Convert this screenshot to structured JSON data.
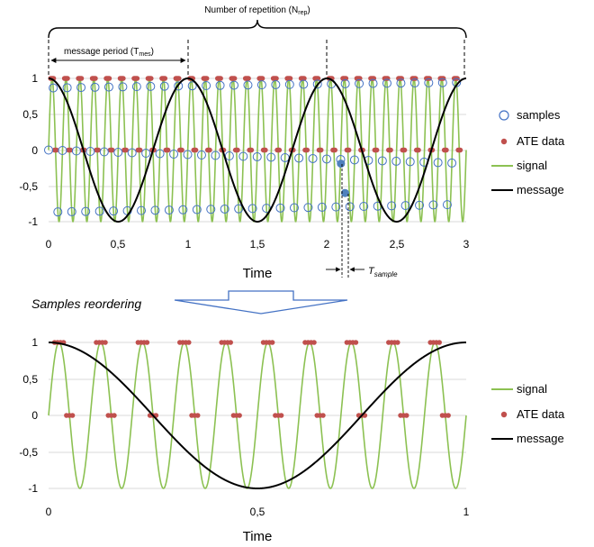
{
  "chart_data": [
    {
      "type": "line",
      "xlabel": "Time",
      "xlim": [
        0,
        3
      ],
      "ylim": [
        -1,
        1
      ],
      "x_ticks": [
        "0",
        "0,5",
        "1",
        "1,5",
        "2",
        "2,5",
        "3"
      ],
      "y_ticks": [
        "1",
        "0,5",
        "0",
        "-0,5",
        "-1"
      ],
      "legend": [
        "samples",
        "ATE data",
        "signal",
        "message"
      ],
      "legend_position": "right",
      "series": [
        {
          "name": "signal",
          "type": "line",
          "color": "#8cc152",
          "function": "sin",
          "cycles_per_unit": 10,
          "amplitude": 1
        },
        {
          "name": "message",
          "type": "line",
          "color": "#000000",
          "function": "cos",
          "cycles_per_unit": 1,
          "amplitude": 1
        },
        {
          "name": "samples",
          "type": "scatter",
          "marker": "open-circle",
          "color": "#4472c4",
          "x_start": 0,
          "x_step": 0.0333,
          "count": 89
        },
        {
          "name": "ATE data",
          "type": "scatter",
          "marker": "filled-dot",
          "color": "#c0504d",
          "levels": [
            0,
            1
          ]
        }
      ],
      "highlight_points": [
        {
          "x": 2.1,
          "y": -0.19,
          "color": "#4f81bd"
        },
        {
          "x": 2.13,
          "y": -0.6,
          "color": "#4f81bd"
        }
      ],
      "annotations": {
        "repetition": "Number of repetition (N",
        "repetition_sub": "rep",
        "repetition_close": ")",
        "period": "message period (T",
        "period_sub": "mes",
        "period_close": ")",
        "tsample": "T",
        "tsample_sub": "sample"
      }
    },
    {
      "type": "line",
      "xlabel": "Time",
      "xlim": [
        0,
        1
      ],
      "ylim": [
        -1,
        1
      ],
      "x_ticks": [
        "0",
        "0,5",
        "1"
      ],
      "y_ticks": [
        "1",
        "0,5",
        "0",
        "-0,5",
        "-1"
      ],
      "legend": [
        "signal",
        "ATE data",
        "message"
      ],
      "legend_position": "right",
      "series": [
        {
          "name": "signal",
          "type": "line",
          "color": "#8cc152",
          "function": "sin",
          "cycles_per_unit": 10,
          "amplitude": 1
        },
        {
          "name": "ATE data",
          "type": "scatter",
          "marker": "filled-dot",
          "color": "#c0504d",
          "levels": [
            0,
            1
          ]
        },
        {
          "name": "message",
          "type": "line",
          "color": "#000000",
          "function": "cos",
          "cycles_per_unit": 1,
          "amplitude": 1
        }
      ]
    }
  ],
  "transition_label": "Samples reordering"
}
